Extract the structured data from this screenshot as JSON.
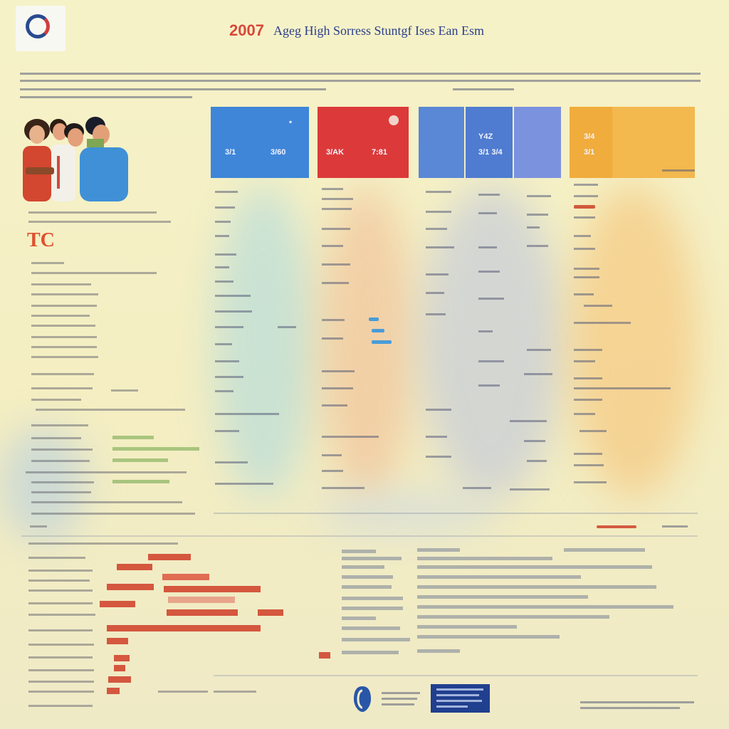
{
  "header": {
    "year": "2007",
    "title": "Ageg High Sorress Stuntgf Ises Ean Esm",
    "logo_icon": "circular-seal-logo"
  },
  "left_panel": {
    "heading": "TC"
  },
  "columns": [
    {
      "label": "3/1",
      "sub": "3/60",
      "color": "#3f86d8"
    },
    {
      "label": "3/AK",
      "sub": "7:81",
      "color": "#dc3a3a"
    },
    {
      "label": "Y4Z",
      "sub": "3/1 3/4",
      "color": "#5a80d2"
    },
    {
      "label": "3/4",
      "sub": "3/1",
      "color": "#eda53a"
    }
  ],
  "colors": {
    "background": "#f5f0c6",
    "blue": "#3f86d8",
    "red": "#dc3a3a",
    "orange": "#eda53a",
    "navy": "#203f8e",
    "accent_title": "#d8483a"
  }
}
